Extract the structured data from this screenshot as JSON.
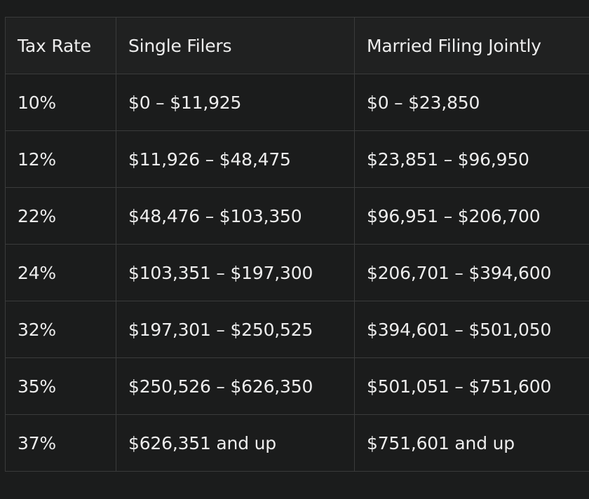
{
  "table": {
    "headers": [
      "Tax Rate",
      "Single Filers",
      "Married Filing Jointly"
    ],
    "rows": [
      [
        "10%",
        "$0 – $11,925",
        "$0 – $23,850"
      ],
      [
        "12%",
        "$11,926 – $48,475",
        "$23,851 – $96,950"
      ],
      [
        "22%",
        "$48,476 – $103,350",
        "$96,951 – $206,700"
      ],
      [
        "24%",
        "$103,351 – $197,300",
        "$206,701 – $394,600"
      ],
      [
        "32%",
        "$197,301 – $250,525",
        "$394,601 – $501,050"
      ],
      [
        "35%",
        "$250,526 – $626,350",
        "$501,051 – $751,600"
      ],
      [
        "37%",
        "$626,351 and up",
        "$751,601 and up"
      ]
    ]
  }
}
